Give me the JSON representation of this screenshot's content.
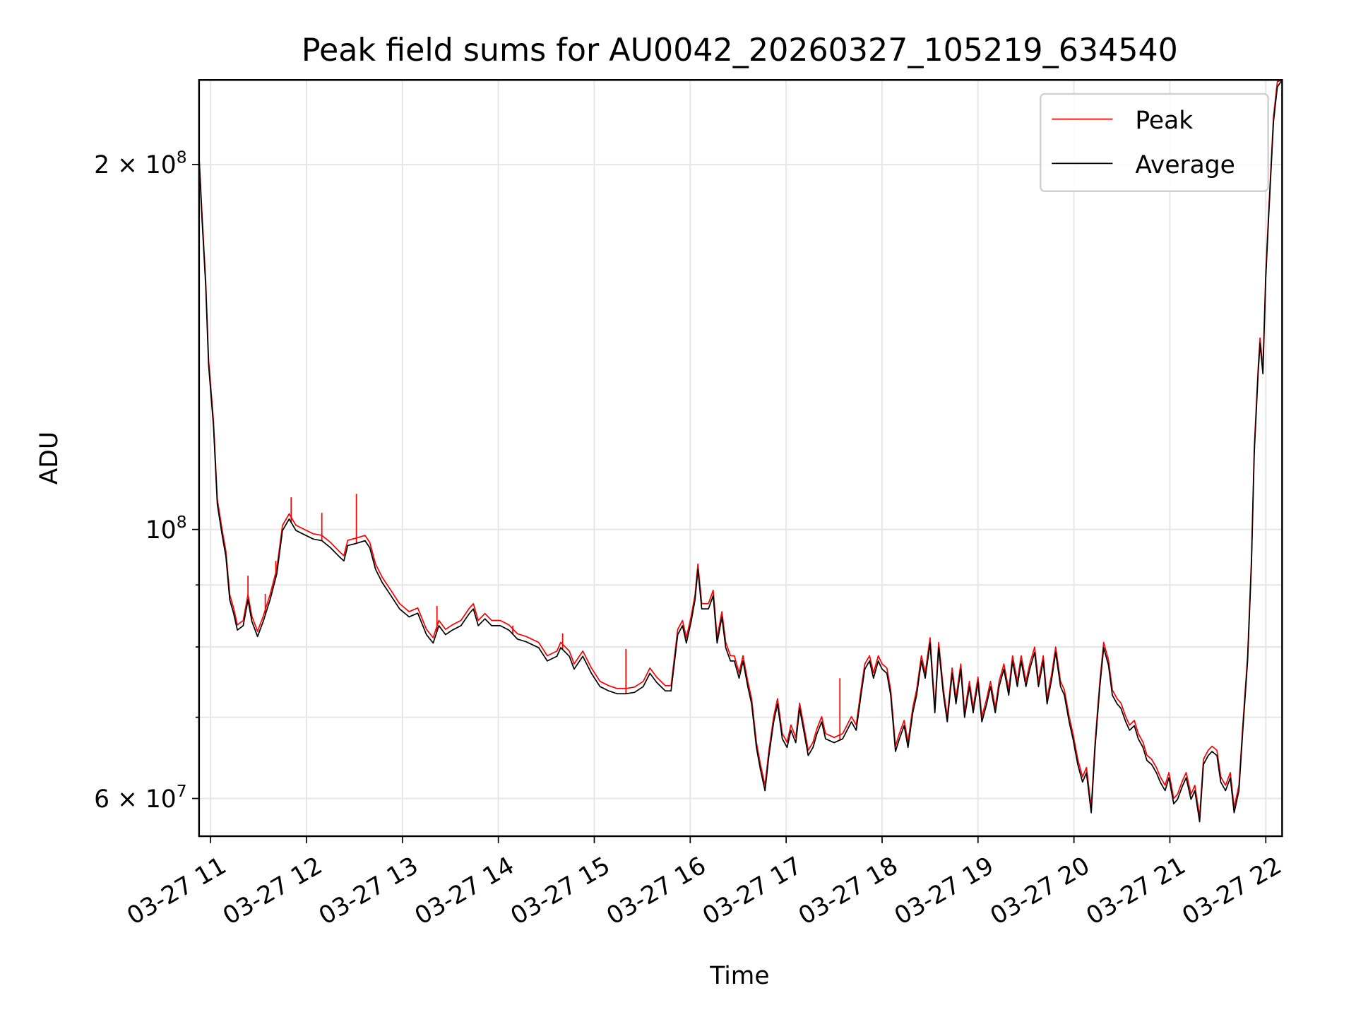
{
  "chart_data": {
    "type": "line",
    "title": "Peak field sums for AU0042_20260327_105219_634540",
    "xlabel": "Time",
    "ylabel": "ADU",
    "yscale": "log",
    "ylim_millions": [
      55.85,
      234.8
    ],
    "xlim_hours": [
      10.88,
      22.17
    ],
    "x_unit": "hour of day 2026-03-27",
    "y_unit": "millions of ADU",
    "grid": true,
    "legend": {
      "placement": "top-right",
      "entries": [
        {
          "label": "Peak",
          "color": "#ff0000"
        },
        {
          "label": "Average",
          "color": "#000000"
        }
      ]
    },
    "x_ticks": [
      {
        "value": 11,
        "label": "03-27 11"
      },
      {
        "value": 12,
        "label": "03-27 12"
      },
      {
        "value": 13,
        "label": "03-27 13"
      },
      {
        "value": 14,
        "label": "03-27 14"
      },
      {
        "value": 15,
        "label": "03-27 15"
      },
      {
        "value": 16,
        "label": "03-27 16"
      },
      {
        "value": 17,
        "label": "03-27 17"
      },
      {
        "value": 18,
        "label": "03-27 18"
      },
      {
        "value": 19,
        "label": "03-27 19"
      },
      {
        "value": 20,
        "label": "03-27 20"
      },
      {
        "value": 21,
        "label": "03-27 21"
      },
      {
        "value": 22,
        "label": "03-27 22"
      }
    ],
    "y_ticks_major": [
      {
        "value": 200,
        "mant": "2",
        "exp": "8"
      },
      {
        "value": 100,
        "mant": "",
        "exp": "8"
      },
      {
        "value": 60,
        "mant": "6",
        "exp": "7"
      }
    ],
    "y_grid_minor": [
      70,
      80,
      90
    ],
    "peak_offset_pct": 1.0,
    "peak_spikes": [
      [
        11.39,
        91.6
      ],
      [
        11.57,
        88.5
      ],
      [
        11.68,
        94.2
      ],
      [
        11.84,
        106.3
      ],
      [
        12.16,
        103.2
      ],
      [
        12.52,
        107.0
      ],
      [
        13.36,
        86.5
      ],
      [
        14.15,
        83.3
      ],
      [
        14.67,
        82.1
      ],
      [
        15.33,
        79.7
      ],
      [
        17.56,
        75.4
      ]
    ],
    "average": [
      [
        10.88,
        203.0
      ],
      [
        10.91,
        180.9
      ],
      [
        10.95,
        158.5
      ],
      [
        10.98,
        136.6
      ],
      [
        11.03,
        121.7
      ],
      [
        11.07,
        104.9
      ],
      [
        11.12,
        99.0
      ],
      [
        11.16,
        95.0
      ],
      [
        11.2,
        87.5
      ],
      [
        11.24,
        85.3
      ],
      [
        11.28,
        82.6
      ],
      [
        11.34,
        83.3
      ],
      [
        11.39,
        87.5
      ],
      [
        11.43,
        84.0
      ],
      [
        11.49,
        81.6
      ],
      [
        11.55,
        84.0
      ],
      [
        11.62,
        87.5
      ],
      [
        11.69,
        91.9
      ],
      [
        11.75,
        99.8
      ],
      [
        11.82,
        102.0
      ],
      [
        11.89,
        99.8
      ],
      [
        11.98,
        99.0
      ],
      [
        12.07,
        98.2
      ],
      [
        12.16,
        97.9
      ],
      [
        12.25,
        96.6
      ],
      [
        12.34,
        95.0
      ],
      [
        12.39,
        94.2
      ],
      [
        12.43,
        97.0
      ],
      [
        12.52,
        97.4
      ],
      [
        12.61,
        97.9
      ],
      [
        12.66,
        96.6
      ],
      [
        12.72,
        92.7
      ],
      [
        12.79,
        90.4
      ],
      [
        12.88,
        88.2
      ],
      [
        12.97,
        86.0
      ],
      [
        13.07,
        84.7
      ],
      [
        13.16,
        85.3
      ],
      [
        13.25,
        81.9
      ],
      [
        13.32,
        80.6
      ],
      [
        13.38,
        83.3
      ],
      [
        13.45,
        81.9
      ],
      [
        13.52,
        82.6
      ],
      [
        13.61,
        83.3
      ],
      [
        13.7,
        85.3
      ],
      [
        13.74,
        86.0
      ],
      [
        13.79,
        83.3
      ],
      [
        13.86,
        84.4
      ],
      [
        13.93,
        83.3
      ],
      [
        14.02,
        83.3
      ],
      [
        14.11,
        82.6
      ],
      [
        14.2,
        81.2
      ],
      [
        14.29,
        80.8
      ],
      [
        14.42,
        79.9
      ],
      [
        14.51,
        77.9
      ],
      [
        14.61,
        78.6
      ],
      [
        14.65,
        79.9
      ],
      [
        14.74,
        78.6
      ],
      [
        14.79,
        76.7
      ],
      [
        14.88,
        78.6
      ],
      [
        14.97,
        76.1
      ],
      [
        15.06,
        74.2
      ],
      [
        15.15,
        73.6
      ],
      [
        15.24,
        73.2
      ],
      [
        15.33,
        73.2
      ],
      [
        15.42,
        73.4
      ],
      [
        15.51,
        74.2
      ],
      [
        15.58,
        76.1
      ],
      [
        15.65,
        74.8
      ],
      [
        15.74,
        73.6
      ],
      [
        15.8,
        73.6
      ],
      [
        15.87,
        81.9
      ],
      [
        15.92,
        83.3
      ],
      [
        15.96,
        80.6
      ],
      [
        16.01,
        84.0
      ],
      [
        16.05,
        87.5
      ],
      [
        16.08,
        92.7
      ],
      [
        16.12,
        86.0
      ],
      [
        16.19,
        86.0
      ],
      [
        16.24,
        88.2
      ],
      [
        16.28,
        80.6
      ],
      [
        16.33,
        84.7
      ],
      [
        16.37,
        79.9
      ],
      [
        16.42,
        77.9
      ],
      [
        16.46,
        77.9
      ],
      [
        16.51,
        75.4
      ],
      [
        16.55,
        77.9
      ],
      [
        16.6,
        74.2
      ],
      [
        16.64,
        71.8
      ],
      [
        16.69,
        66.1
      ],
      [
        16.73,
        63.5
      ],
      [
        16.78,
        60.9
      ],
      [
        16.82,
        65.1
      ],
      [
        16.87,
        69.4
      ],
      [
        16.91,
        71.8
      ],
      [
        16.96,
        67.2
      ],
      [
        17.01,
        66.1
      ],
      [
        17.05,
        68.3
      ],
      [
        17.1,
        66.7
      ],
      [
        17.14,
        71.2
      ],
      [
        17.19,
        67.8
      ],
      [
        17.23,
        65.1
      ],
      [
        17.28,
        66.1
      ],
      [
        17.32,
        67.8
      ],
      [
        17.37,
        69.4
      ],
      [
        17.41,
        67.2
      ],
      [
        17.5,
        66.7
      ],
      [
        17.59,
        67.2
      ],
      [
        17.68,
        69.4
      ],
      [
        17.73,
        68.3
      ],
      [
        17.78,
        73.0
      ],
      [
        17.82,
        76.7
      ],
      [
        17.87,
        77.9
      ],
      [
        17.91,
        75.4
      ],
      [
        17.96,
        77.9
      ],
      [
        18.0,
        76.7
      ],
      [
        18.05,
        76.1
      ],
      [
        18.09,
        73.0
      ],
      [
        18.14,
        65.6
      ],
      [
        18.18,
        67.2
      ],
      [
        18.23,
        68.9
      ],
      [
        18.27,
        66.1
      ],
      [
        18.32,
        70.6
      ],
      [
        18.36,
        73.0
      ],
      [
        18.41,
        77.9
      ],
      [
        18.45,
        75.4
      ],
      [
        18.5,
        80.6
      ],
      [
        18.55,
        70.6
      ],
      [
        18.59,
        79.9
      ],
      [
        18.64,
        73.0
      ],
      [
        18.68,
        69.4
      ],
      [
        18.73,
        76.1
      ],
      [
        18.77,
        71.8
      ],
      [
        18.82,
        76.7
      ],
      [
        18.86,
        70.0
      ],
      [
        18.91,
        74.2
      ],
      [
        18.95,
        70.6
      ],
      [
        19.0,
        74.8
      ],
      [
        19.04,
        69.4
      ],
      [
        19.09,
        71.8
      ],
      [
        19.13,
        74.2
      ],
      [
        19.18,
        70.6
      ],
      [
        19.22,
        74.2
      ],
      [
        19.27,
        76.7
      ],
      [
        19.32,
        73.0
      ],
      [
        19.36,
        77.9
      ],
      [
        19.41,
        74.2
      ],
      [
        19.45,
        77.9
      ],
      [
        19.5,
        74.2
      ],
      [
        19.54,
        76.7
      ],
      [
        19.59,
        79.2
      ],
      [
        19.63,
        74.2
      ],
      [
        19.68,
        77.9
      ],
      [
        19.72,
        71.8
      ],
      [
        19.77,
        75.4
      ],
      [
        19.81,
        79.2
      ],
      [
        19.86,
        74.2
      ],
      [
        19.9,
        73.0
      ],
      [
        19.95,
        69.4
      ],
      [
        19.99,
        67.2
      ],
      [
        20.04,
        64.0
      ],
      [
        20.09,
        61.9
      ],
      [
        20.13,
        63.0
      ],
      [
        20.18,
        58.4
      ],
      [
        20.22,
        66.1
      ],
      [
        20.27,
        74.2
      ],
      [
        20.31,
        79.9
      ],
      [
        20.36,
        77.3
      ],
      [
        20.4,
        73.0
      ],
      [
        20.45,
        71.8
      ],
      [
        20.49,
        71.2
      ],
      [
        20.54,
        69.4
      ],
      [
        20.58,
        68.3
      ],
      [
        20.63,
        68.9
      ],
      [
        20.67,
        67.2
      ],
      [
        20.72,
        66.1
      ],
      [
        20.76,
        64.5
      ],
      [
        20.81,
        64.0
      ],
      [
        20.86,
        63.0
      ],
      [
        20.9,
        61.9
      ],
      [
        20.95,
        60.9
      ],
      [
        20.99,
        62.4
      ],
      [
        21.04,
        59.4
      ],
      [
        21.08,
        59.9
      ],
      [
        21.13,
        61.4
      ],
      [
        21.17,
        62.4
      ],
      [
        21.22,
        59.9
      ],
      [
        21.26,
        60.9
      ],
      [
        21.31,
        57.4
      ],
      [
        21.35,
        64.0
      ],
      [
        21.4,
        65.1
      ],
      [
        21.44,
        65.6
      ],
      [
        21.49,
        65.1
      ],
      [
        21.53,
        61.9
      ],
      [
        21.58,
        60.9
      ],
      [
        21.63,
        62.4
      ],
      [
        21.67,
        58.4
      ],
      [
        21.72,
        60.9
      ],
      [
        21.76,
        68.3
      ],
      [
        21.81,
        77.9
      ],
      [
        21.85,
        93.5
      ],
      [
        21.88,
        115.8
      ],
      [
        21.92,
        134.4
      ],
      [
        21.94,
        142.4
      ],
      [
        21.97,
        134.4
      ],
      [
        22.0,
        161.2
      ],
      [
        22.03,
        180.9
      ],
      [
        22.08,
        216.9
      ],
      [
        22.12,
        231.7
      ],
      [
        22.17,
        234.8
      ]
    ]
  }
}
